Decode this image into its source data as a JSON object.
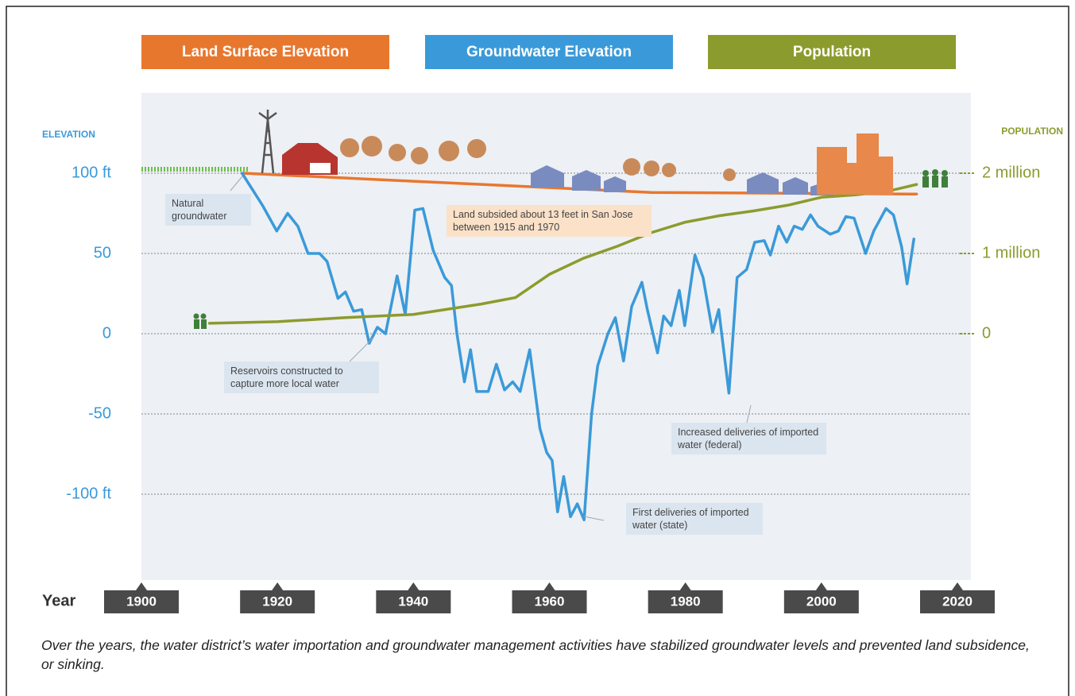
{
  "chart_data": {
    "type": "line",
    "xlabel": "Year",
    "ylabel": "ELEVATION",
    "y2label": "POPULATION",
    "xlim": [
      1900,
      2020
    ],
    "xticks": [
      1900,
      1920,
      1940,
      1960,
      1980,
      2000,
      2020
    ],
    "ylim": [
      -150,
      150
    ],
    "yticks": [
      {
        "value": 100,
        "label": "100 ft"
      },
      50,
      0,
      -50,
      {
        "value": -100,
        "label": "-100 ft"
      }
    ],
    "y2lim": [
      -3000000,
      3000000
    ],
    "y2ticks": [
      {
        "value": 2000000,
        "label": "2 million"
      },
      {
        "value": 1000000,
        "label": "1 million"
      },
      0
    ],
    "grid": true,
    "series": [
      {
        "name": "Land Surface Elevation",
        "color": "#e8772e",
        "x": [
          1915,
          1940,
          1960,
          1975,
          2014
        ],
        "values": [
          100,
          95,
          91,
          88,
          87
        ]
      },
      {
        "name": "Groundwater Elevation",
        "color": "#3a9ad9",
        "x": [
          1914.8,
          1917.8,
          1919.9,
          1921.5,
          1923,
          1924.5,
          1926.2,
          1927.3,
          1928.9,
          1930,
          1931.2,
          1932.4,
          1933.5,
          1934.7,
          1935.9,
          1937.6,
          1938.8,
          1940.2,
          1941.4,
          1942.9,
          1944.6,
          1945.6,
          1946.4,
          1947.5,
          1948.4,
          1949.3,
          1951,
          1952.2,
          1953.4,
          1954.6,
          1955.7,
          1957.1,
          1958.6,
          1959.6,
          1960.4,
          1961.2,
          1962.1,
          1963.1,
          1964.1,
          1965.1,
          1966.2,
          1967.1,
          1968.6,
          1969.7,
          1970.9,
          1972.1,
          1973.6,
          1974.4,
          1975.9,
          1976.8,
          1977.9,
          1979.1,
          1979.9,
          1981.4,
          1982.6,
          1984,
          1984.9,
          1986.4,
          1987.6,
          1989,
          1990.2,
          1991.6,
          1992.5,
          1993.7,
          1994.9,
          1996,
          1997.2,
          1998.4,
          1999.5,
          2001.3,
          2002.5,
          2003.6,
          2004.8,
          2006.5,
          2007.7,
          2009.5,
          2010.6,
          2011.8,
          2012.6,
          2013.6
        ],
        "values": [
          100,
          80,
          64,
          75,
          67,
          50,
          50,
          45,
          22,
          26,
          14,
          15,
          -6,
          4,
          0,
          36,
          12,
          77,
          78,
          52,
          35,
          30,
          0,
          -30,
          -10,
          -36,
          -36,
          -19,
          -35,
          -30,
          -36,
          -10,
          -59,
          -74,
          -79,
          -111,
          -89,
          -114,
          -106,
          -116,
          -50,
          -20,
          0,
          10,
          -17,
          17,
          32,
          15,
          -12,
          11,
          5,
          27,
          5,
          49,
          35,
          1,
          15,
          -37,
          35,
          40,
          57,
          58,
          49,
          67,
          57,
          67,
          65,
          74,
          67,
          62,
          64,
          73,
          72,
          50,
          64,
          78,
          74,
          54,
          31,
          59
        ]
      },
      {
        "name": "Population",
        "color": "#8c9b2d",
        "axis": "y2",
        "x": [
          1910,
          1920,
          1930,
          1940,
          1950,
          1955,
          1960,
          1965,
          1970,
          1975,
          1980,
          1985,
          1990,
          1995,
          2000,
          2005,
          2010,
          2014
        ],
        "values": [
          130000,
          150000,
          200000,
          240000,
          370000,
          450000,
          740000,
          940000,
          1090000,
          1260000,
          1390000,
          1470000,
          1530000,
          1600000,
          1700000,
          1730000,
          1780000,
          1860000
        ]
      }
    ],
    "annotations": [
      "Natural groundwater",
      "Land subsided about 13 feet in San Jose between 1915 and 1970",
      "Reservoirs constructed to capture more local water",
      "Increased deliveries of imported water (federal)",
      "First deliveries of imported water (state)"
    ],
    "caption": "Over the years, the water district’s water importation and groundwater management activities have stabilized groundwater levels and prevented land subsidence, or sinking."
  }
}
